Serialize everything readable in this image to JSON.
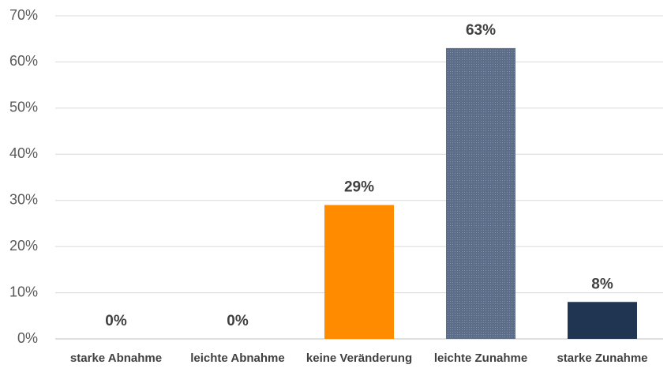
{
  "chart_data": {
    "type": "bar",
    "categories": [
      "starke Abnahme",
      "leichte Abnahme",
      "keine Veränderung",
      "leichte Zunahme",
      "starke Zunahme"
    ],
    "values": [
      0,
      0,
      29,
      63,
      8
    ],
    "value_labels": [
      "0%",
      "0%",
      "29%",
      "63%",
      "8%"
    ],
    "colors": [
      "#ff8c00",
      "#ff8c00",
      "#ff8c00",
      "#5b6d88",
      "#1f3552"
    ],
    "ylim": [
      0,
      70
    ],
    "yticks": [
      {
        "value": 0,
        "label": "0%"
      },
      {
        "value": 10,
        "label": "10%"
      },
      {
        "value": 20,
        "label": "20%"
      },
      {
        "value": 30,
        "label": "30%"
      },
      {
        "value": 40,
        "label": "40%"
      },
      {
        "value": 50,
        "label": "50%"
      },
      {
        "value": 60,
        "label": "60%"
      },
      {
        "value": 70,
        "label": "70%"
      }
    ],
    "grid": true
  }
}
